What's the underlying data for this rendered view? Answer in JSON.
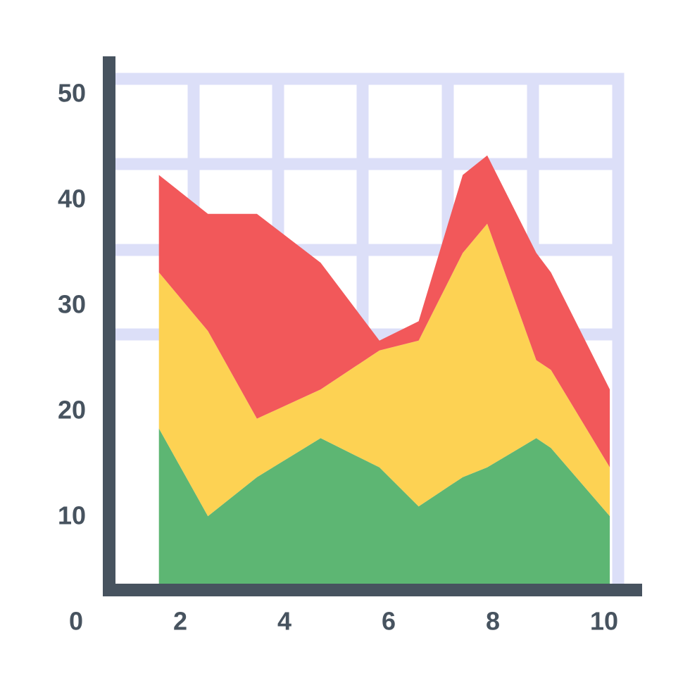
{
  "chart_data": {
    "type": "area",
    "stacked": true,
    "title": "",
    "xlabel": "",
    "ylabel": "",
    "x": [
      0.9,
      1.9,
      2.9,
      4.2,
      5.4,
      6.2,
      7.1,
      7.6,
      8.6,
      8.9,
      10.1
    ],
    "xlim": [
      0,
      10.3
    ],
    "ylim": [
      0,
      52
    ],
    "x_ticks": [
      "0",
      "2",
      "4",
      "6",
      "8",
      "10"
    ],
    "y_ticks": [
      "10",
      "20",
      "30",
      "40",
      "50"
    ],
    "grid": true,
    "legend": "none",
    "series": [
      {
        "color": "#5db673",
        "values": [
          16,
          7,
          11,
          15,
          12,
          8,
          11,
          12,
          15,
          14,
          7
        ]
      },
      {
        "color": "#fdd253",
        "values": [
          16,
          19,
          6,
          5,
          12,
          17,
          23,
          25,
          8,
          8,
          5
        ]
      },
      {
        "color": "#f2585a",
        "values": [
          10,
          12,
          21,
          13,
          1,
          2,
          8,
          7,
          11,
          10,
          8
        ]
      }
    ],
    "colors": {
      "axis": "#47535f",
      "grid": "#dcdff8",
      "tick_text": "#47535f"
    }
  }
}
